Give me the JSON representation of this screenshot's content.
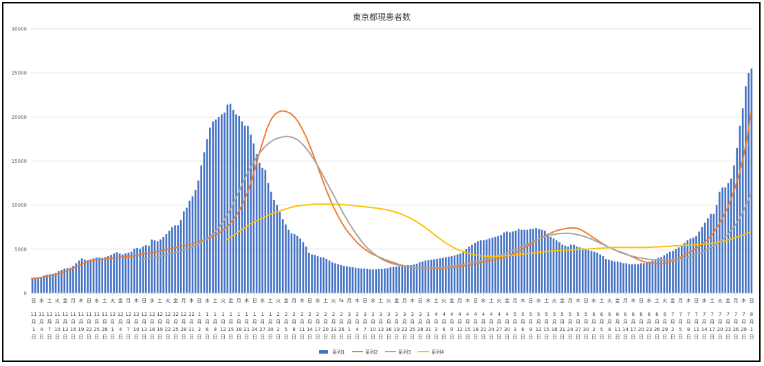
{
  "chart_data": {
    "type": "bar",
    "title": "東京都現患者数",
    "xlabel": "",
    "ylabel": "",
    "ylim": [
      0,
      30000
    ],
    "y_ticks": [
      0,
      5000,
      10000,
      15000,
      20000,
      25000,
      30000
    ],
    "grid": true,
    "legend_position": "bottom",
    "x_tick_labels": [
      {
        "w": "日",
        "m": "11",
        "d": "1"
      },
      {
        "w": "水",
        "m": "11",
        "d": "4"
      },
      {
        "w": "土",
        "m": "11",
        "d": "7"
      },
      {
        "w": "火",
        "m": "11",
        "d": "10"
      },
      {
        "w": "金",
        "m": "11",
        "d": "13"
      },
      {
        "w": "月",
        "m": "11",
        "d": "16"
      },
      {
        "w": "木",
        "m": "11",
        "d": "19"
      },
      {
        "w": "日",
        "m": "11",
        "d": "22"
      },
      {
        "w": "水",
        "m": "11",
        "d": "25"
      },
      {
        "w": "土",
        "m": "11",
        "d": "28"
      },
      {
        "w": "火",
        "m": "12",
        "d": "1"
      },
      {
        "w": "金",
        "m": "12",
        "d": "4"
      },
      {
        "w": "月",
        "m": "12",
        "d": "7"
      },
      {
        "w": "木",
        "m": "12",
        "d": "10"
      },
      {
        "w": "日",
        "m": "12",
        "d": "13"
      },
      {
        "w": "水",
        "m": "12",
        "d": "16"
      },
      {
        "w": "土",
        "m": "12",
        "d": "19"
      },
      {
        "w": "火",
        "m": "12",
        "d": "22"
      },
      {
        "w": "金",
        "m": "12",
        "d": "25"
      },
      {
        "w": "月",
        "m": "12",
        "d": "28"
      },
      {
        "w": "木",
        "m": "12",
        "d": "31"
      },
      {
        "w": "日",
        "m": "1",
        "d": "3"
      },
      {
        "w": "水",
        "m": "1",
        "d": "6"
      },
      {
        "w": "土",
        "m": "1",
        "d": "9"
      },
      {
        "w": "火",
        "m": "1",
        "d": "12"
      },
      {
        "w": "金",
        "m": "1",
        "d": "15"
      },
      {
        "w": "月",
        "m": "1",
        "d": "18"
      },
      {
        "w": "木",
        "m": "1",
        "d": "21"
      },
      {
        "w": "日",
        "m": "1",
        "d": "24"
      },
      {
        "w": "水",
        "m": "1",
        "d": "27"
      },
      {
        "w": "土",
        "m": "1",
        "d": "30"
      },
      {
        "w": "火",
        "m": "2",
        "d": "2"
      },
      {
        "w": "金",
        "m": "2",
        "d": "5"
      },
      {
        "w": "月",
        "m": "2",
        "d": "8"
      },
      {
        "w": "木",
        "m": "2",
        "d": "11"
      },
      {
        "w": "日",
        "m": "2",
        "d": "14"
      },
      {
        "w": "水",
        "m": "2",
        "d": "17"
      },
      {
        "w": "土",
        "m": "2",
        "d": "20"
      },
      {
        "w": "火",
        "m": "2",
        "d": "23"
      },
      {
        "w": "fa",
        "m": "2",
        "d": "26"
      },
      {
        "w": "月",
        "m": "3",
        "d": "1"
      },
      {
        "w": "木",
        "m": "3",
        "d": "4"
      },
      {
        "w": "日",
        "m": "3",
        "d": "7"
      },
      {
        "w": "水",
        "m": "3",
        "d": "10"
      },
      {
        "w": "土",
        "m": "3",
        "d": "13"
      },
      {
        "w": "火",
        "m": "3",
        "d": "16"
      },
      {
        "w": "金",
        "m": "3",
        "d": "19"
      },
      {
        "w": "月",
        "m": "3",
        "d": "22"
      },
      {
        "w": "木",
        "m": "3",
        "d": "25"
      },
      {
        "w": "日",
        "m": "3",
        "d": "28"
      },
      {
        "w": "水",
        "m": "3",
        "d": "31"
      },
      {
        "w": "土",
        "m": "4",
        "d": "3"
      },
      {
        "w": "火",
        "m": "4",
        "d": "6"
      },
      {
        "w": "金",
        "m": "4",
        "d": "9"
      },
      {
        "w": "月",
        "m": "4",
        "d": "12"
      },
      {
        "w": "木",
        "m": "4",
        "d": "15"
      },
      {
        "w": "日",
        "m": "4",
        "d": "18"
      },
      {
        "w": "水",
        "m": "4",
        "d": "21"
      },
      {
        "w": "土",
        "m": "4",
        "d": "24"
      },
      {
        "w": "火",
        "m": "4",
        "d": "27"
      },
      {
        "w": "金",
        "m": "4",
        "d": "30"
      },
      {
        "w": "月",
        "m": "5",
        "d": "3"
      },
      {
        "w": "木",
        "m": "5",
        "d": "6"
      },
      {
        "w": "日",
        "m": "5",
        "d": "9"
      },
      {
        "w": "水",
        "m": "5",
        "d": "12"
      },
      {
        "w": "土",
        "m": "5",
        "d": "15"
      },
      {
        "w": "火",
        "m": "5",
        "d": "18"
      },
      {
        "w": "金",
        "m": "5",
        "d": "21"
      },
      {
        "w": "月",
        "m": "5",
        "d": "24"
      },
      {
        "w": "木",
        "m": "5",
        "d": "27"
      },
      {
        "w": "日",
        "m": "5",
        "d": "30"
      },
      {
        "w": "水",
        "m": "6",
        "d": "2"
      },
      {
        "w": "土",
        "m": "6",
        "d": "5"
      },
      {
        "w": "火",
        "m": "6",
        "d": "8"
      },
      {
        "w": "金",
        "m": "6",
        "d": "11"
      },
      {
        "w": "月",
        "m": "6",
        "d": "14"
      },
      {
        "w": "木",
        "m": "6",
        "d": "17"
      },
      {
        "w": "日",
        "m": "6",
        "d": "20"
      },
      {
        "w": "水",
        "m": "6",
        "d": "23"
      },
      {
        "w": "土",
        "m": "6",
        "d": "26"
      },
      {
        "w": "火",
        "m": "6",
        "d": "29"
      },
      {
        "w": "金",
        "m": "7",
        "d": "2"
      },
      {
        "w": "月",
        "m": "7",
        "d": "5"
      },
      {
        "w": "木",
        "m": "7",
        "d": "8"
      },
      {
        "w": "日",
        "m": "7",
        "d": "11"
      },
      {
        "w": "水",
        "m": "7",
        "d": "14"
      },
      {
        "w": "土",
        "m": "7",
        "d": "17"
      },
      {
        "w": "火",
        "m": "7",
        "d": "20"
      },
      {
        "w": "金",
        "m": "7",
        "d": "23"
      },
      {
        "w": "月",
        "m": "7",
        "d": "26"
      },
      {
        "w": "木",
        "m": "7",
        "d": "29"
      },
      {
        "w": "日",
        "m": "8",
        "d": "1"
      }
    ],
    "month_unit": "月",
    "day_unit": "日",
    "series": [
      {
        "name": "系列1",
        "type": "bar",
        "color": "#4472C4",
        "values": [
          1650,
          1700,
          1780,
          1850,
          2000,
          2100,
          2150,
          2200,
          2300,
          2500,
          2650,
          2800,
          2850,
          2900,
          3100,
          3400,
          3700,
          3950,
          3800,
          3750,
          3850,
          3950,
          4050,
          4050,
          4000,
          4100,
          4200,
          4350,
          4500,
          4650,
          4500,
          4400,
          4500,
          4600,
          4700,
          5050,
          5150,
          5050,
          5300,
          5450,
          5400,
          6100,
          6000,
          5900,
          6100,
          6400,
          6700,
          7100,
          7500,
          7700,
          7700,
          8300,
          9300,
          9700,
          10500,
          11000,
          11700,
          12800,
          14500,
          16000,
          17500,
          18800,
          19500,
          19700,
          20000,
          20300,
          20500,
          21400,
          21500,
          20800,
          20300,
          20100,
          19500,
          19000,
          19000,
          18000,
          17000,
          15800,
          14800,
          14200,
          14000,
          12500,
          11500,
          10600,
          10000,
          9200,
          8400,
          7800,
          7200,
          6800,
          6700,
          6500,
          6200,
          5800,
          5300,
          4600,
          4400,
          4350,
          4200,
          4100,
          4050,
          3900,
          3700,
          3500,
          3400,
          3300,
          3200,
          3100,
          3050,
          3000,
          2950,
          2900,
          2850,
          2800,
          2800,
          2750,
          2700,
          2700,
          2700,
          2750,
          2750,
          2800,
          2850,
          2950,
          3000,
          3000,
          3050,
          3100,
          3150,
          3200,
          3200,
          3250,
          3350,
          3500,
          3600,
          3700,
          3750,
          3800,
          3850,
          3900,
          3950,
          4000,
          4100,
          4150,
          4200,
          4300,
          4400,
          4500,
          4800,
          5000,
          5300,
          5500,
          5700,
          5900,
          6000,
          6000,
          6100,
          6200,
          6300,
          6400,
          6500,
          6600,
          6900,
          7000,
          6900,
          7000,
          7100,
          7300,
          7200,
          7200,
          7200,
          7300,
          7300,
          7400,
          7300,
          7200,
          7100,
          6600,
          6400,
          6200,
          6000,
          5800,
          5500,
          5400,
          5300,
          5500,
          5500,
          5300,
          5200,
          5100,
          5000,
          4900,
          4800,
          4700,
          4600,
          4400,
          4200,
          3900,
          3800,
          3700,
          3600,
          3600,
          3500,
          3400,
          3400,
          3300,
          3300,
          3300,
          3300,
          3400,
          3400,
          3500,
          3600,
          3700,
          3800,
          4000,
          4100,
          4300,
          4500,
          4700,
          4800,
          5000,
          5200,
          5500,
          5700,
          6000,
          6200,
          6300,
          6500,
          7000,
          7500,
          8000,
          8500,
          9000,
          9000,
          10000,
          11500,
          12000,
          12000,
          12500,
          13000,
          14500,
          16500,
          19000,
          21000,
          23500,
          25000,
          25500
        ]
      },
      {
        "name": "系列2",
        "type": "line",
        "color": "#ED7D31",
        "values": [
          1650,
          1700,
          1750,
          1800,
          1900,
          2000,
          2100,
          2200,
          2350,
          2500,
          2700,
          2900,
          3100,
          3300,
          3500,
          3650,
          3750,
          3800,
          3850,
          3900,
          3950,
          4000,
          4050,
          4100,
          4150,
          4200,
          4250,
          4300,
          4400,
          4500,
          4550,
          4600,
          4700,
          4800,
          4900,
          5000,
          5100,
          5200,
          5300,
          5400,
          5500,
          5600,
          5750,
          5900,
          6050,
          6200,
          6400,
          6650,
          6900,
          7200,
          7600,
          8100,
          8700,
          9400,
          10300,
          11400,
          12700,
          14200,
          15800,
          17300,
          18700,
          19700,
          20300,
          20600,
          20700,
          20600,
          20400,
          20000,
          19400,
          18600,
          17700,
          16600,
          15400,
          14200,
          13000,
          11800,
          10700,
          9700,
          8800,
          8000,
          7300,
          6700,
          6200,
          5700,
          5300,
          4950,
          4650,
          4400,
          4200,
          4000,
          3800,
          3650,
          3500,
          3350,
          3200,
          3100,
          3000,
          2950,
          2900,
          2850,
          2800,
          2800,
          2800,
          2800,
          2800,
          2850,
          2900,
          2950,
          3000,
          3050,
          3100,
          3150,
          3250,
          3350,
          3450,
          3550,
          3650,
          3750,
          3850,
          3950,
          4050,
          4200,
          4350,
          4550,
          4800,
          5050,
          5300,
          5550,
          5850,
          6100,
          6350,
          6600,
          6800,
          7000,
          7150,
          7250,
          7350,
          7400,
          7400,
          7350,
          7150,
          6900,
          6600,
          6300,
          6000,
          5700,
          5450,
          5200,
          5000,
          4800,
          4650,
          4500,
          4300,
          4100,
          3900,
          3700,
          3550,
          3450,
          3400,
          3350,
          3350,
          3400,
          3500,
          3650,
          3850,
          4050,
          4300,
          4550,
          4800,
          5050,
          5350,
          5700,
          6100,
          6600,
          7200,
          7900,
          8700,
          9600,
          10700,
          12000,
          13500,
          15300,
          17500,
          20500
        ]
      },
      {
        "name": "系列3",
        "type": "line",
        "color": "#A5A5A5",
        "values": [
          3800,
          3900,
          4000,
          4100,
          4250,
          4400,
          4550,
          4700,
          4900,
          5150,
          5450,
          5800,
          6200,
          6700,
          7400,
          8300,
          9400,
          10700,
          12100,
          13500,
          14700,
          15700,
          16500,
          17100,
          17500,
          17700,
          17800,
          17700,
          17400,
          16800,
          16000,
          15000,
          13900,
          12700,
          11500,
          10300,
          9100,
          8000,
          7000,
          6100,
          5300,
          4700,
          4200,
          3800,
          3500,
          3300,
          3150,
          3050,
          2950,
          2900,
          2850,
          2850,
          2850,
          2900,
          2950,
          3050,
          3150,
          3250,
          3400,
          3550,
          3700,
          3850,
          4000,
          4200,
          4400,
          4650,
          4900,
          5150,
          5400,
          5700,
          6000,
          6250,
          6500,
          6650,
          6750,
          6800,
          6800,
          6700,
          6550,
          6350,
          6100,
          5800,
          5500,
          5200,
          4900,
          4600,
          4400,
          4200,
          4050,
          3950,
          3850,
          3800,
          3750,
          3750,
          3800,
          3850,
          3950,
          4100,
          4300,
          4550,
          4850,
          5200,
          5600,
          6100,
          6700,
          7500,
          8500,
          9800,
          11300
        ]
      },
      {
        "name": "系列4",
        "type": "line",
        "color": "#FFC000",
        "values": [
          6000,
          6600,
          7200,
          7800,
          8300,
          8700,
          9100,
          9400,
          9700,
          9900,
          10000,
          10100,
          10100,
          10100,
          10100,
          10050,
          9950,
          9850,
          9750,
          9650,
          9500,
          9300,
          9000,
          8600,
          8100,
          7500,
          6800,
          6100,
          5500,
          5000,
          4650,
          4400,
          4250,
          4200,
          4200,
          4250,
          4300,
          4400,
          4500,
          4600,
          4700,
          4800,
          4850,
          4900,
          4950,
          5000,
          5050,
          5100,
          5150,
          5200,
          5200,
          5200,
          5200,
          5200,
          5250,
          5300,
          5350,
          5400,
          5450,
          5500,
          5550,
          5650,
          5800,
          6000,
          6300,
          6600,
          7000
        ]
      }
    ]
  }
}
